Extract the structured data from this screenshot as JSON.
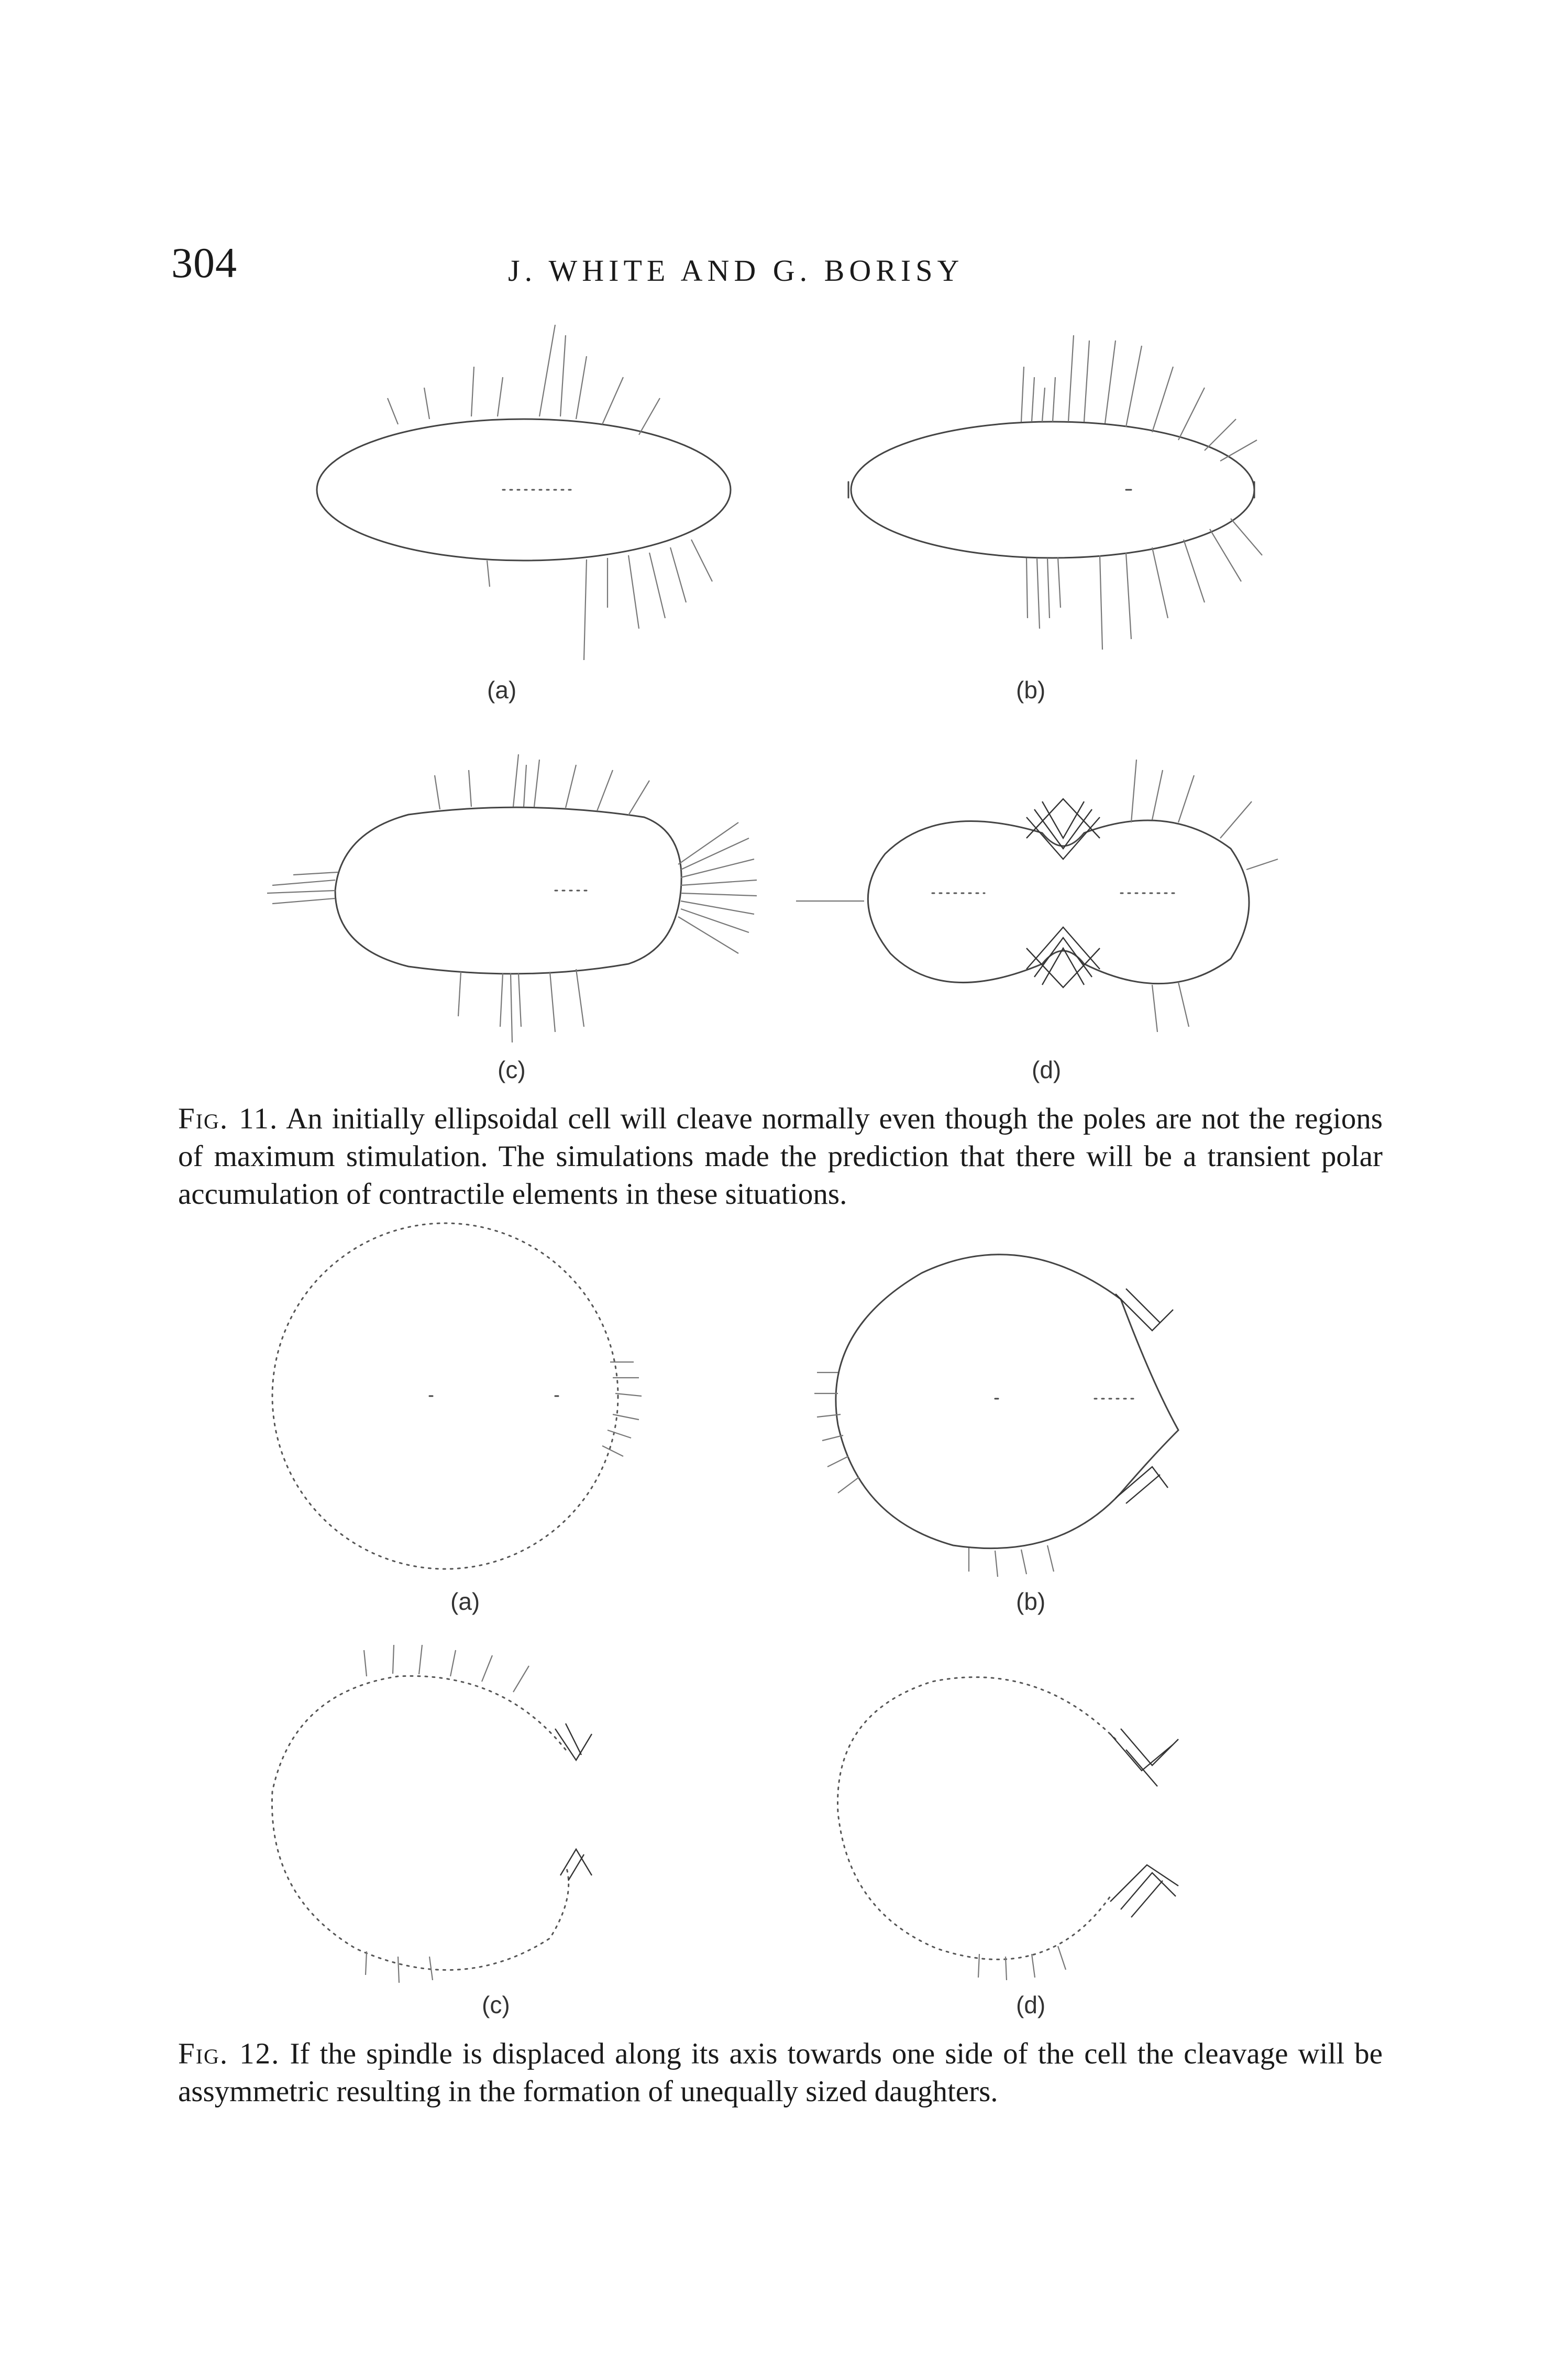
{
  "header": {
    "page_number": "304",
    "running_head": "J. WHITE AND G. BORISY"
  },
  "figure_11": {
    "panels": [
      {
        "label": "(a)"
      },
      {
        "label": "(b)"
      },
      {
        "label": "(c)"
      },
      {
        "label": "(d)"
      }
    ],
    "caption": {
      "tag": "Fig. 11.",
      "text": "An initially ellipsoidal cell will cleave normally even though the poles are not the regions of maximum stimulation. The simulations made the prediction that there will be a transient polar accumulation of contractile elements in these situations."
    }
  },
  "figure_12": {
    "panels": [
      {
        "label": "(a)"
      },
      {
        "label": "(b)"
      },
      {
        "label": "(c)"
      },
      {
        "label": "(d)"
      }
    ],
    "caption": {
      "tag": "Fig. 12.",
      "text": "If the spindle is displaced along its axis towards one side of the cell the cleavage will be assymmetric resulting in the formation of unequally sized daughters."
    }
  }
}
